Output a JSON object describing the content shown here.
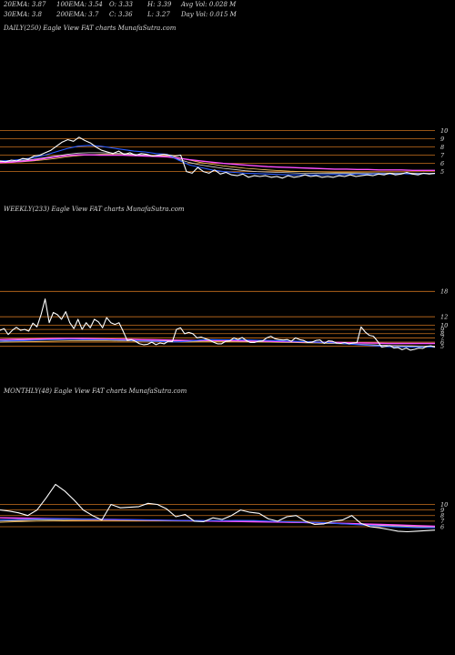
{
  "header": {
    "row1": [
      {
        "name": "ema20",
        "text": "20EMA: 3.87"
      },
      {
        "name": "ema100",
        "text": "100EMA: 3.54"
      },
      {
        "name": "open",
        "text": "O: 3.33"
      },
      {
        "name": "high",
        "text": "H: 3.39"
      },
      {
        "name": "avgvol",
        "text": "Avg Vol: 0.028 M"
      }
    ],
    "row2": [
      {
        "name": "ema30",
        "text": "30EMA: 3.8"
      },
      {
        "name": "ema200",
        "text": "200EMA: 3.7"
      },
      {
        "name": "close",
        "text": "C: 3.36"
      },
      {
        "name": "low",
        "text": "L: 3.27"
      },
      {
        "name": "dayvol",
        "text": "Day Vol: 0.015 M"
      }
    ]
  },
  "panels": [
    {
      "id": "daily",
      "label": "DAILY(250) Eagle   View  FAT charts MunafaSutra.com"
    },
    {
      "id": "weekly",
      "label": "WEEKLY(233) Eagle   View  FAT charts MunafaSutra.com"
    },
    {
      "id": "monthly",
      "label": "MONTHLY(48) Eagle   View  FAT charts MunafaSutra.com"
    }
  ],
  "colors": {
    "background": "#000000",
    "price": "#ffffff",
    "grid": "#c8701e",
    "ema_short": "#2a5cff",
    "ema_mid": "#d8d8d8",
    "ema_long": "#ff50ff",
    "ema_alt": "#ffcc66"
  },
  "chart_data": [
    {
      "type": "line",
      "title": "DAILY(250)",
      "ylim": [
        2.4,
        10.4
      ],
      "yticks": [
        10,
        9,
        8,
        7,
        6,
        5
      ],
      "series": [
        {
          "role": "price",
          "values": [
            6.3,
            6.2,
            6.4,
            6.3,
            6.6,
            6.5,
            6.9,
            7.0,
            7.3,
            7.6,
            8.1,
            8.6,
            8.9,
            8.7,
            9.2,
            8.8,
            8.5,
            8.0,
            7.6,
            7.4,
            7.2,
            7.5,
            7.1,
            7.3,
            7.0,
            7.2,
            7.1,
            6.9,
            7.0,
            7.1,
            7.0,
            6.9,
            7.0,
            5.0,
            4.8,
            5.5,
            5.0,
            4.8,
            5.2,
            4.7,
            4.9,
            4.6,
            4.5,
            4.7,
            4.3,
            4.5,
            4.4,
            4.5,
            4.3,
            4.4,
            4.2,
            4.5,
            4.3,
            4.4,
            4.6,
            4.4,
            4.5,
            4.3,
            4.4,
            4.3,
            4.5,
            4.4,
            4.6,
            4.4,
            4.5,
            4.6,
            4.5,
            4.7,
            4.6,
            4.8,
            4.6,
            4.7,
            4.9,
            4.7,
            4.6,
            4.8,
            4.7,
            4.8
          ]
        },
        {
          "role": "ema_short",
          "values": [
            6.3,
            6.35,
            6.5,
            6.7,
            7.0,
            7.4,
            7.8,
            8.1,
            8.2,
            8.1,
            7.9,
            7.7,
            7.5,
            7.4,
            7.2,
            7.1,
            6.4,
            5.8,
            5.5,
            5.2,
            5.0,
            4.9,
            4.8,
            4.75,
            4.7,
            4.65,
            4.6,
            4.6,
            4.6,
            4.6,
            4.65,
            4.65,
            4.7,
            4.7,
            4.75,
            4.7,
            4.75,
            4.7,
            4.75,
            4.75
          ]
        },
        {
          "role": "ema_mid",
          "values": [
            6.2,
            6.25,
            6.35,
            6.5,
            6.7,
            6.9,
            7.1,
            7.25,
            7.3,
            7.3,
            7.25,
            7.2,
            7.1,
            7.0,
            6.9,
            6.85,
            6.5,
            6.1,
            5.8,
            5.6,
            5.4,
            5.25,
            5.1,
            5.0,
            4.95,
            4.9,
            4.85,
            4.8,
            4.8,
            4.78,
            4.78,
            4.78,
            4.76,
            4.76,
            4.76,
            4.75,
            4.75,
            4.75,
            4.75,
            4.75
          ]
        },
        {
          "role": "ema_alt",
          "values": [
            6.1,
            6.15,
            6.2,
            6.3,
            6.45,
            6.6,
            6.8,
            6.95,
            7.05,
            7.1,
            7.1,
            7.08,
            7.05,
            7.0,
            6.95,
            6.9,
            6.7,
            6.4,
            6.1,
            5.9,
            5.7,
            5.55,
            5.4,
            5.3,
            5.2,
            5.12,
            5.05,
            5.0,
            4.97,
            4.94,
            4.91,
            4.89,
            4.87,
            4.85,
            4.84,
            4.83,
            4.82,
            4.81,
            4.8,
            4.8
          ]
        },
        {
          "role": "ema_long",
          "values": [
            6.1,
            6.15,
            6.25,
            6.4,
            6.6,
            6.8,
            6.95,
            7.05,
            7.05,
            7.0,
            7.0,
            7.0,
            6.95,
            6.9,
            6.85,
            6.8,
            6.65,
            6.45,
            6.3,
            6.15,
            6.0,
            5.9,
            5.8,
            5.7,
            5.6,
            5.55,
            5.5,
            5.45,
            5.4,
            5.35,
            5.3,
            5.3,
            5.25,
            5.25,
            5.2,
            5.2,
            5.2,
            5.15,
            5.15,
            5.15
          ]
        }
      ]
    },
    {
      "type": "line",
      "title": "WEEKLY(233)",
      "ylim": [
        3.0,
        18.5
      ],
      "yticks": [
        18,
        12,
        10,
        9,
        8,
        7,
        6,
        5
      ],
      "series": [
        {
          "role": "price",
          "values": [
            8.8,
            9.2,
            7.8,
            8.8,
            9.5,
            8.8,
            9.0,
            8.6,
            10.5,
            9.6,
            12.5,
            16.2,
            10.6,
            13.0,
            12.5,
            11.4,
            13.2,
            10.6,
            9.2,
            11.4,
            9.0,
            10.6,
            9.4,
            11.4,
            10.8,
            9.4,
            11.8,
            10.6,
            10.2,
            10.6,
            8.6,
            6.4,
            6.6,
            6.2,
            5.6,
            5.4,
            5.5,
            6.0,
            5.4,
            5.8,
            5.6,
            6.2,
            6.1,
            9.0,
            9.4,
            8.0,
            8.3,
            8.0,
            7.0,
            7.2,
            6.8,
            6.5,
            6.0,
            5.6,
            5.6,
            6.2,
            6.3,
            7.0,
            6.6,
            7.1,
            6.4,
            5.9,
            5.9,
            6.2,
            6.3,
            7.0,
            7.4,
            6.8,
            6.6,
            6.5,
            6.6,
            6.2,
            7.0,
            6.6,
            6.4,
            5.9,
            6.0,
            6.4,
            6.5,
            5.7,
            6.3,
            6.2,
            5.8,
            5.7,
            5.9,
            5.6,
            5.8,
            5.9,
            9.6,
            8.4,
            7.6,
            7.4,
            6.2,
            4.8,
            5.0,
            5.2,
            4.6,
            4.7,
            4.2,
            4.6,
            4.1,
            4.3,
            4.6,
            4.5,
            5.0,
            5.1,
            4.8
          ]
        },
        {
          "role": "ema_short",
          "values": [
            6.2,
            6.3,
            6.35,
            6.45,
            6.55,
            6.6,
            6.65,
            6.6,
            6.6,
            6.6,
            6.5,
            6.4,
            6.3,
            6.2,
            6.1,
            6.05,
            6.2,
            6.5,
            6.6,
            6.55,
            6.55,
            6.5,
            6.45,
            6.4,
            6.3,
            6.2,
            6.1,
            6.0,
            5.9,
            5.7,
            5.5,
            5.3,
            5.1,
            4.9,
            4.85,
            4.8,
            4.85,
            4.85
          ]
        },
        {
          "role": "ema_mid",
          "values": [
            6.3,
            6.4,
            6.5,
            6.55,
            6.6,
            6.65,
            6.65,
            6.65,
            6.6,
            6.55,
            6.5,
            6.45,
            6.4,
            6.35,
            6.3,
            6.25,
            6.25,
            6.3,
            6.35,
            6.35,
            6.3,
            6.25,
            6.2,
            6.15,
            6.1,
            6.05,
            6.0,
            5.9,
            5.8,
            5.7,
            5.6,
            5.45,
            5.3,
            5.2,
            5.1,
            5.0,
            4.95,
            4.95
          ]
        },
        {
          "role": "ema_alt",
          "values": [
            6.0,
            6.05,
            6.1,
            6.15,
            6.2,
            6.25,
            6.3,
            6.3,
            6.3,
            6.3,
            6.28,
            6.25,
            6.2,
            6.15,
            6.1,
            6.05,
            6.05,
            6.1,
            6.12,
            6.12,
            6.1,
            6.08,
            6.05,
            6.0,
            5.95,
            5.9,
            5.85,
            5.8,
            5.7,
            5.6,
            5.5,
            5.4,
            5.3,
            5.2,
            5.15,
            5.1,
            5.05,
            5.05
          ]
        },
        {
          "role": "ema_long",
          "values": [
            6.6,
            6.65,
            6.7,
            6.75,
            6.8,
            6.85,
            6.85,
            6.85,
            6.8,
            6.75,
            6.7,
            6.65,
            6.6,
            6.55,
            6.5,
            6.45,
            6.4,
            6.4,
            6.4,
            6.38,
            6.35,
            6.3,
            6.25,
            6.2,
            6.15,
            6.1,
            6.05,
            6.0,
            5.95,
            5.9,
            5.85,
            5.8,
            5.75,
            5.7,
            5.7,
            5.7,
            5.7,
            5.7
          ]
        }
      ]
    },
    {
      "type": "line",
      "title": "MONTHLY(48)",
      "ylim": [
        4.2,
        14.0
      ],
      "yticks": [
        10,
        9,
        8,
        7,
        6
      ],
      "series": [
        {
          "role": "price",
          "values": [
            9.0,
            8.8,
            8.5,
            8.0,
            9.0,
            11.2,
            13.6,
            12.4,
            10.8,
            9.0,
            8.0,
            7.2,
            10.0,
            9.4,
            9.5,
            9.6,
            10.2,
            10.0,
            9.2,
            7.8,
            8.2,
            7.0,
            6.9,
            7.6,
            7.3,
            8.0,
            9.0,
            8.6,
            8.4,
            7.4,
            7.0,
            7.8,
            8.0,
            7.0,
            6.4,
            6.5,
            7.0,
            7.2,
            8.0,
            6.6,
            6.0,
            5.8,
            5.5,
            5.2,
            5.1,
            5.2,
            5.3,
            5.4
          ]
        },
        {
          "role": "ema_short",
          "values": [
            7.2,
            7.3,
            7.4,
            7.45,
            7.4,
            7.35,
            7.3,
            7.25,
            7.2,
            7.15,
            7.1,
            7.1,
            7.1,
            7.12,
            7.1,
            7.0,
            6.9,
            6.8,
            6.7,
            6.5,
            6.3,
            6.1,
            5.95,
            5.85,
            5.8
          ]
        },
        {
          "role": "ema_mid",
          "values": [
            7.0,
            7.1,
            7.2,
            7.25,
            7.3,
            7.3,
            7.28,
            7.25,
            7.2,
            7.15,
            7.1,
            7.08,
            7.05,
            7.05,
            7.02,
            6.95,
            6.85,
            6.75,
            6.65,
            6.5,
            6.35,
            6.2,
            6.05,
            5.95,
            5.9
          ]
        },
        {
          "role": "ema_alt",
          "values": [
            6.8,
            6.9,
            7.0,
            7.05,
            7.1,
            7.12,
            7.12,
            7.1,
            7.08,
            7.05,
            7.02,
            7.0,
            6.98,
            6.95,
            6.9,
            6.85,
            6.78,
            6.7,
            6.6,
            6.5,
            6.4,
            6.3,
            6.2,
            6.1,
            6.05
          ]
        },
        {
          "role": "ema_long",
          "values": [
            7.6,
            7.55,
            7.5,
            7.45,
            7.4,
            7.35,
            7.3,
            7.25,
            7.2,
            7.15,
            7.1,
            7.05,
            7.0,
            6.95,
            6.9,
            6.85,
            6.8,
            6.75,
            6.7,
            6.6,
            6.5,
            6.4,
            6.3,
            6.2,
            6.1
          ]
        }
      ]
    }
  ]
}
